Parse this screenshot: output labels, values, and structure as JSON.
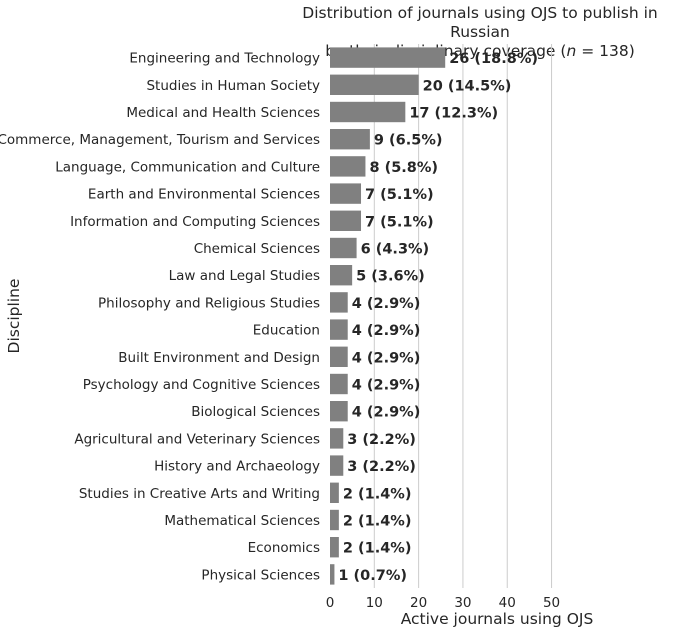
{
  "chart_data": {
    "type": "bar",
    "orientation": "horizontal",
    "title": "Distribution of journals using OJS to publish in Russian",
    "subtitle_prefix": "by their disciplinary coverage (",
    "subtitle_n_symbol": "n",
    "subtitle_suffix": " = 138)",
    "xlabel": "Active journals using OJS",
    "ylabel": "Discipline",
    "xlim": [
      0,
      58
    ],
    "xticks": [
      0,
      10,
      20,
      30,
      40,
      50
    ],
    "grid": "vertical",
    "bar_color": "#808080",
    "categories": [
      "Engineering and Technology",
      "Studies in Human Society",
      "Medical and Health Sciences",
      "Commerce, Management, Tourism and Services",
      "Language, Communication and Culture",
      "Earth and Environmental Sciences",
      "Information and Computing Sciences",
      "Chemical Sciences",
      "Law and Legal Studies",
      "Philosophy and Religious Studies",
      "Education",
      "Built Environment and Design",
      "Psychology and Cognitive Sciences",
      "Biological Sciences",
      "Agricultural and Veterinary Sciences",
      "History and Archaeology",
      "Studies in Creative Arts and Writing",
      "Mathematical Sciences",
      "Economics",
      "Physical Sciences"
    ],
    "values": [
      26,
      20,
      17,
      9,
      8,
      7,
      7,
      6,
      5,
      4,
      4,
      4,
      4,
      4,
      3,
      3,
      2,
      2,
      2,
      1
    ],
    "data_labels": [
      "26 (18.8%)",
      "20 (14.5%)",
      "17 (12.3%)",
      "9 (6.5%)",
      "8 (5.8%)",
      "7 (5.1%)",
      "7 (5.1%)",
      "6 (4.3%)",
      "5 (3.6%)",
      "4 (2.9%)",
      "4 (2.9%)",
      "4 (2.9%)",
      "4 (2.9%)",
      "4 (2.9%)",
      "3 (2.2%)",
      "3 (2.2%)",
      "2 (1.4%)",
      "2 (1.4%)",
      "2 (1.4%)",
      "1 (0.7%)"
    ]
  }
}
